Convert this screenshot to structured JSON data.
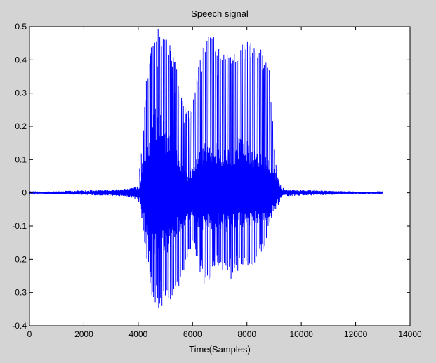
{
  "chart_data": {
    "type": "line",
    "title": "Speech signal",
    "xlabel": "Time(Samples)",
    "ylabel": "",
    "xlim": [
      0,
      14000
    ],
    "ylim": [
      -0.4,
      0.5
    ],
    "xticks": [
      0,
      2000,
      4000,
      6000,
      8000,
      10000,
      12000,
      14000
    ],
    "yticks": [
      -0.4,
      -0.3,
      -0.2,
      -0.1,
      0,
      0.1,
      0.2,
      0.3,
      0.4,
      0.5
    ],
    "xtick_labels": [
      "0",
      "2000",
      "4000",
      "6000",
      "8000",
      "10000",
      "12000",
      "14000"
    ],
    "ytick_labels": [
      "-0.4",
      "-0.3",
      "-0.2",
      "-0.1",
      "0",
      "0.1",
      "0.2",
      "0.3",
      "0.4",
      "0.5"
    ],
    "series": [
      {
        "color": "#0000ff",
        "n_samples": 13000,
        "envelope": {
          "x": [
            0,
            1000,
            2000,
            2800,
            3000,
            3500,
            3900,
            4050,
            4150,
            4300,
            4500,
            4650,
            4800,
            5000,
            5200,
            5400,
            5600,
            5800,
            6000,
            6200,
            6400,
            6600,
            6800,
            7000,
            7200,
            7400,
            7600,
            7800,
            8000,
            8200,
            8400,
            8600,
            8800,
            9000,
            9100,
            9200,
            9500,
            10000,
            11000,
            12000,
            13000
          ],
          "upper": [
            0.002,
            0.002,
            0.002,
            0.004,
            0.008,
            0.012,
            0.02,
            0.08,
            0.15,
            0.35,
            0.45,
            0.5,
            0.49,
            0.47,
            0.45,
            0.38,
            0.3,
            0.25,
            0.26,
            0.4,
            0.46,
            0.48,
            0.47,
            0.44,
            0.42,
            0.41,
            0.43,
            0.45,
            0.46,
            0.45,
            0.44,
            0.43,
            0.4,
            0.15,
            0.06,
            0.02,
            0.01,
            0.008,
            0.004,
            0.003,
            0.002
          ],
          "lower": [
            -0.002,
            -0.002,
            -0.002,
            -0.004,
            -0.006,
            -0.01,
            -0.02,
            -0.04,
            -0.1,
            -0.2,
            -0.32,
            -0.36,
            -0.35,
            -0.34,
            -0.32,
            -0.3,
            -0.25,
            -0.2,
            -0.15,
            -0.22,
            -0.28,
            -0.27,
            -0.25,
            -0.24,
            -0.25,
            -0.26,
            -0.24,
            -0.22,
            -0.23,
            -0.22,
            -0.2,
            -0.18,
            -0.1,
            -0.05,
            -0.03,
            -0.01,
            -0.005,
            -0.004,
            -0.003,
            -0.002,
            -0.002
          ]
        },
        "dense_upper": {
          "x": [
            0,
            3500,
            4050,
            4200,
            4400,
            4600,
            4800,
            5000,
            5200,
            5400,
            5600,
            5800,
            6000,
            6200,
            6400,
            6600,
            6800,
            7000,
            7200,
            7400,
            7600,
            7800,
            8000,
            8200,
            8400,
            8600,
            8800,
            9000,
            9150,
            9300,
            13000
          ],
          "values": [
            0.002,
            0.012,
            0.02,
            0.14,
            0.18,
            0.27,
            0.25,
            0.21,
            0.18,
            0.13,
            0.1,
            0.06,
            0.08,
            0.12,
            0.15,
            0.16,
            0.16,
            0.14,
            0.13,
            0.14,
            0.16,
            0.17,
            0.16,
            0.14,
            0.12,
            0.13,
            0.1,
            0.08,
            0.05,
            0.01,
            0.002
          ]
        },
        "dense_lower": {
          "x": [
            0,
            3500,
            4050,
            4200,
            4400,
            4600,
            4800,
            5000,
            5200,
            5400,
            5600,
            5800,
            6000,
            6200,
            6400,
            6600,
            6800,
            7000,
            7200,
            7400,
            7600,
            7800,
            8000,
            8200,
            8400,
            8600,
            8800,
            9000,
            9150,
            9300,
            13000
          ],
          "values": [
            -0.002,
            -0.01,
            -0.02,
            -0.1,
            -0.18,
            -0.22,
            -0.21,
            -0.19,
            -0.17,
            -0.13,
            -0.11,
            -0.09,
            -0.08,
            -0.11,
            -0.12,
            -0.11,
            -0.12,
            -0.11,
            -0.12,
            -0.12,
            -0.11,
            -0.1,
            -0.11,
            -0.1,
            -0.1,
            -0.09,
            -0.08,
            -0.06,
            -0.04,
            -0.01,
            -0.002
          ]
        }
      }
    ],
    "grid": false,
    "colors": {
      "background": "#d4d4d4",
      "axes": "#ffffff",
      "line": "#0000ff"
    }
  }
}
